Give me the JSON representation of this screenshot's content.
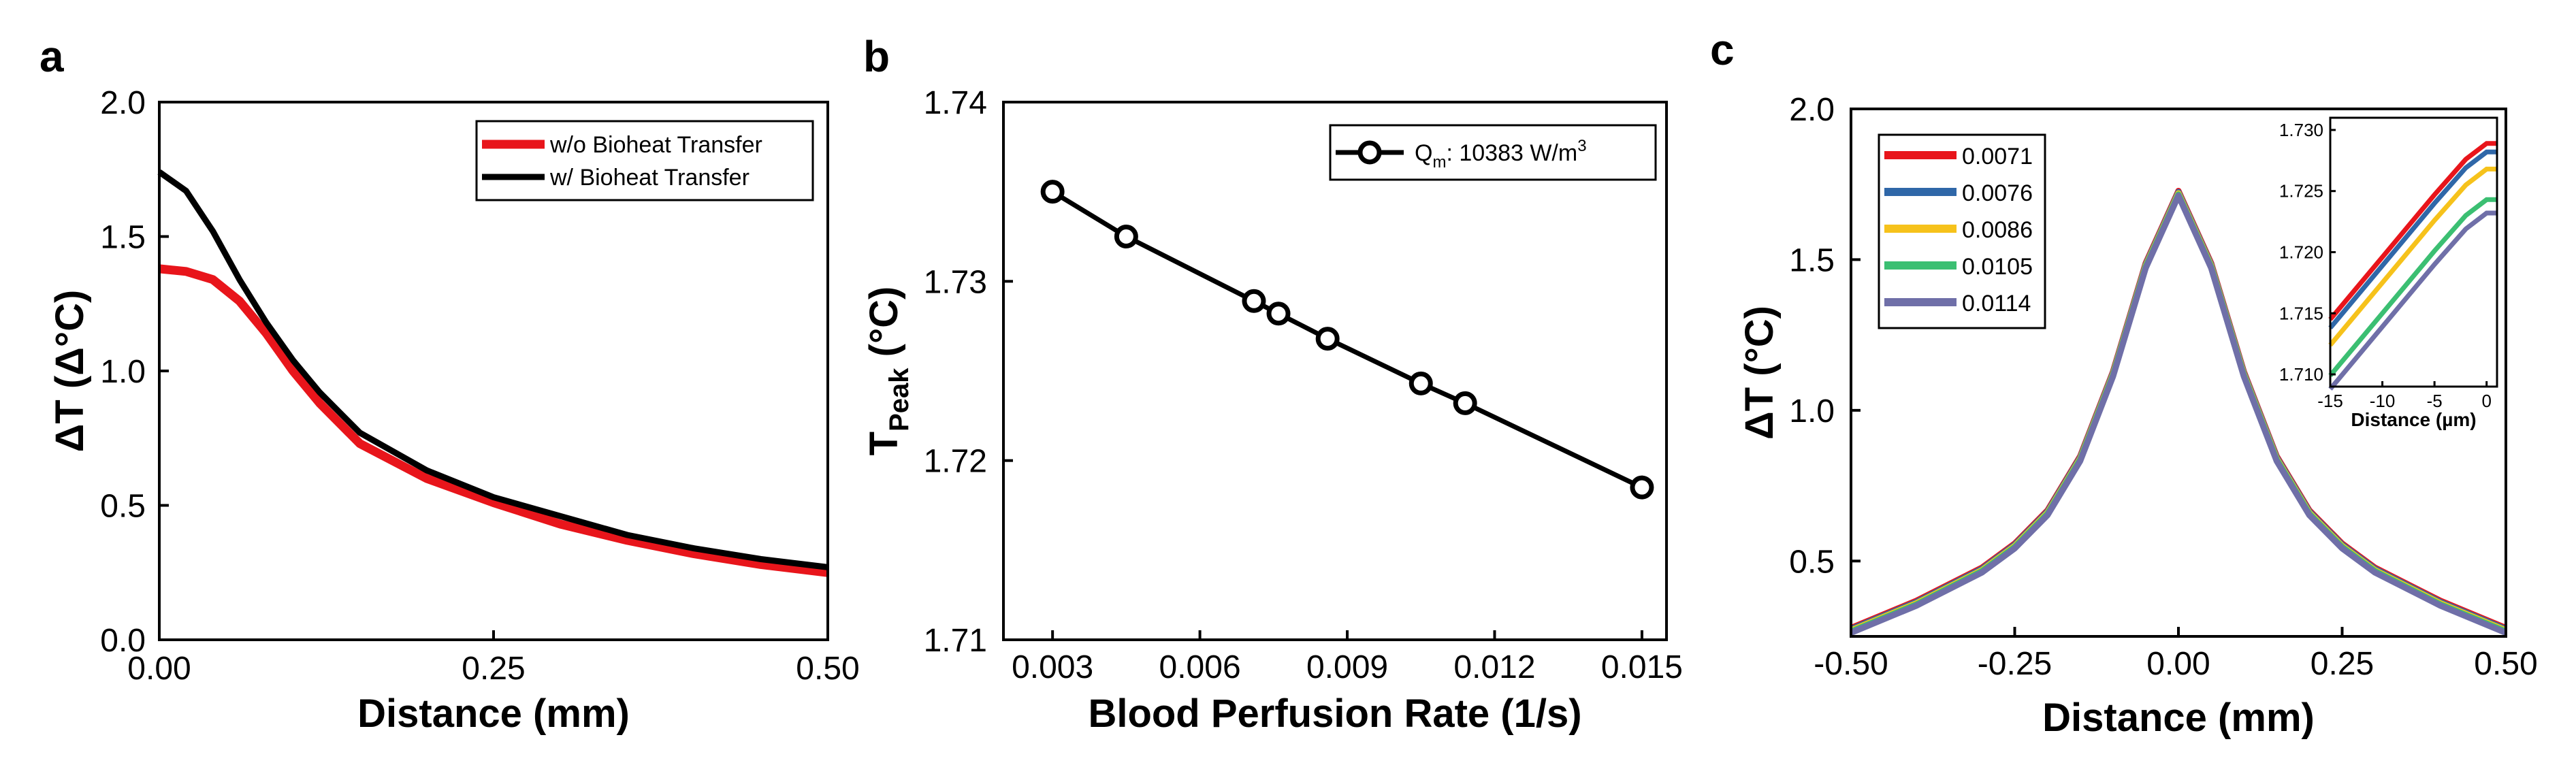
{
  "panels": {
    "a": {
      "label": "a"
    },
    "b": {
      "label": "b"
    },
    "c": {
      "label": "c"
    }
  },
  "chart_data": [
    {
      "panel": "a",
      "type": "line",
      "xlabel": "Distance (mm)",
      "ylabel": "ΔT (Δ°C)",
      "xlim": [
        0,
        0.5
      ],
      "ylim": [
        0,
        2.0
      ],
      "xticks": [
        "0.00",
        "0.25",
        "0.50"
      ],
      "yticks": [
        "0.0",
        "0.5",
        "1.0",
        "1.5",
        "2.0"
      ],
      "legend_position": "top-right",
      "series": [
        {
          "name": "w/o Bioheat Transfer",
          "color": "#e8151b",
          "x": [
            0,
            0.02,
            0.04,
            0.06,
            0.08,
            0.1,
            0.12,
            0.15,
            0.2,
            0.25,
            0.3,
            0.35,
            0.4,
            0.45,
            0.5
          ],
          "y": [
            1.38,
            1.37,
            1.34,
            1.26,
            1.14,
            1.0,
            0.88,
            0.73,
            0.6,
            0.51,
            0.43,
            0.37,
            0.32,
            0.28,
            0.25
          ]
        },
        {
          "name": "w/ Bioheat Transfer",
          "color": "#000000",
          "x": [
            0,
            0.02,
            0.04,
            0.06,
            0.08,
            0.1,
            0.12,
            0.15,
            0.2,
            0.25,
            0.3,
            0.35,
            0.4,
            0.45,
            0.5
          ],
          "y": [
            1.74,
            1.67,
            1.52,
            1.34,
            1.18,
            1.04,
            0.92,
            0.77,
            0.63,
            0.53,
            0.46,
            0.39,
            0.34,
            0.3,
            0.27
          ]
        }
      ]
    },
    {
      "panel": "b",
      "type": "line",
      "xlabel": "Blood Perfusion Rate (1/s)",
      "ylabel": "T",
      "ylabel_sub": "Peak",
      "ylabel_unit": " (°C)",
      "xlim": [
        0.002,
        0.0155
      ],
      "ylim": [
        1.71,
        1.74
      ],
      "xticks": [
        "0.003",
        "0.006",
        "0.009",
        "0.012",
        "0.015"
      ],
      "yticks": [
        "1.71",
        "1.72",
        "1.73",
        "1.74"
      ],
      "legend_position": "top-right",
      "series": [
        {
          "name_main": "Q",
          "name_sub": "m",
          "name_rest": ": 10383 W/m",
          "name_sup": "3",
          "color": "#000000",
          "x": [
            0.003,
            0.0045,
            0.0071,
            0.0076,
            0.0086,
            0.0105,
            0.0114,
            0.015
          ],
          "y": [
            1.735,
            1.7325,
            1.7289,
            1.7282,
            1.7268,
            1.7243,
            1.7232,
            1.7185
          ]
        }
      ]
    },
    {
      "panel": "c",
      "type": "line",
      "xlabel": "Distance (mm)",
      "ylabel": "ΔT (°C)",
      "xlim": [
        -0.5,
        0.5
      ],
      "ylim": [
        0.25,
        2.0
      ],
      "xticks": [
        "-0.50",
        "-0.25",
        "0.00",
        "0.25",
        "0.50"
      ],
      "yticks": [
        "0.5",
        "1.0",
        "1.5",
        "2.0"
      ],
      "legend_position": "top-left",
      "profile": {
        "x": [
          -0.5,
          -0.4,
          -0.3,
          -0.25,
          -0.2,
          -0.15,
          -0.1,
          -0.05,
          0,
          0.05,
          0.1,
          0.15,
          0.2,
          0.25,
          0.3,
          0.4,
          0.5
        ],
        "y": [
          0.27,
          0.36,
          0.47,
          0.55,
          0.66,
          0.84,
          1.12,
          1.48,
          1.72,
          1.48,
          1.12,
          0.84,
          0.66,
          0.55,
          0.47,
          0.36,
          0.27
        ]
      },
      "series": [
        {
          "name": "0.0071",
          "color": "#e8151b"
        },
        {
          "name": "0.0076",
          "color": "#2f67a8"
        },
        {
          "name": "0.0086",
          "color": "#f6c21b"
        },
        {
          "name": "0.0105",
          "color": "#3bbf72"
        },
        {
          "name": "0.0114",
          "color": "#6f6fa8"
        }
      ],
      "inset": {
        "xlabel": "Distance (µm)",
        "xlim": [
          -15,
          1
        ],
        "ylim": [
          1.709,
          1.731
        ],
        "xticks": [
          "-15",
          "-10",
          "-5",
          "0"
        ],
        "yticks": [
          "1.710",
          "1.715",
          "1.720",
          "1.725",
          "1.730"
        ],
        "series": [
          {
            "name": "0.0071",
            "color": "#e8151b",
            "x": [
              -15,
              -10,
              -5,
              -2,
              0,
              1
            ],
            "y": [
              1.7145,
              1.7196,
              1.7247,
              1.7276,
              1.7289,
              1.7289
            ]
          },
          {
            "name": "0.0076",
            "color": "#2f67a8",
            "x": [
              -15,
              -10,
              -5,
              -2,
              0,
              1
            ],
            "y": [
              1.7138,
              1.7189,
              1.724,
              1.7269,
              1.7282,
              1.7282
            ]
          },
          {
            "name": "0.0086",
            "color": "#f6c21b",
            "x": [
              -15,
              -10,
              -5,
              -2,
              0,
              1
            ],
            "y": [
              1.7124,
              1.7175,
              1.7226,
              1.7255,
              1.7268,
              1.7268
            ]
          },
          {
            "name": "0.0105",
            "color": "#3bbf72",
            "x": [
              -15,
              -10,
              -5,
              -2,
              0,
              1
            ],
            "y": [
              1.7099,
              1.715,
              1.7201,
              1.723,
              1.7243,
              1.7243
            ]
          },
          {
            "name": "0.0114",
            "color": "#6f6fa8",
            "x": [
              -15,
              -10,
              -5,
              -2,
              0,
              1
            ],
            "y": [
              1.7088,
              1.7139,
              1.719,
              1.7219,
              1.7232,
              1.7232
            ]
          }
        ]
      }
    }
  ]
}
